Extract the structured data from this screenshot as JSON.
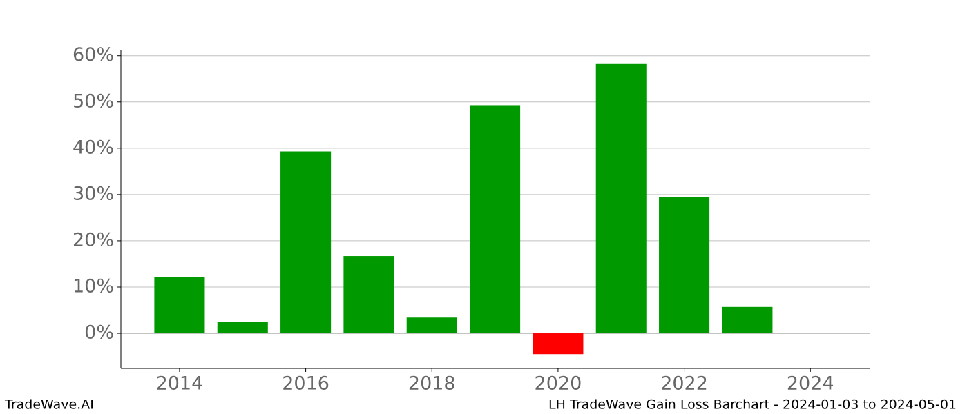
{
  "chart_data": {
    "type": "bar",
    "title": "LH TradeWave Gain Loss Barchart - 2024-01-03 to 2024-05-01",
    "watermark": "TradeWave.AI",
    "x": [
      2014,
      2015,
      2016,
      2017,
      2018,
      2019,
      2020,
      2021,
      2022,
      2023
    ],
    "values": [
      12.1,
      2.4,
      39.3,
      16.7,
      3.4,
      49.3,
      -4.5,
      58.2,
      29.4,
      5.7
    ],
    "positive_color": "#009900",
    "negative_color": "#ff0000",
    "xlim": [
      2013.07,
      2024.95
    ],
    "xticks": [
      2014,
      2016,
      2018,
      2020,
      2022,
      2024
    ],
    "ylim": [
      -7.6,
      61.3
    ],
    "yticks": [
      {
        "value": 0,
        "label": "0%"
      },
      {
        "value": 10,
        "label": "10%"
      },
      {
        "value": 20,
        "label": "20%"
      },
      {
        "value": 30,
        "label": "30%"
      },
      {
        "value": 40,
        "label": "40%"
      },
      {
        "value": 50,
        "label": "50%"
      },
      {
        "value": 60,
        "label": "60%"
      }
    ],
    "grid": true
  }
}
